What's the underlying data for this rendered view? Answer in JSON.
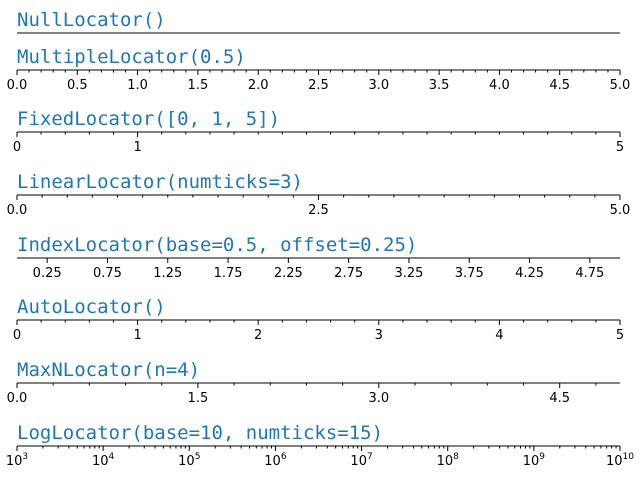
{
  "chart_data": {
    "type": "tick_locator_demo",
    "panels": [
      {
        "title": "NullLocator()",
        "xlim": [
          0,
          5
        ],
        "scale": "linear",
        "major_ticks": [],
        "major_labels": [],
        "minor_ticks": []
      },
      {
        "title": "MultipleLocator(0.5)",
        "xlim": [
          0,
          5
        ],
        "scale": "linear",
        "major_ticks": [
          0,
          0.5,
          1,
          1.5,
          2,
          2.5,
          3,
          3.5,
          4,
          4.5,
          5
        ],
        "major_labels": [
          "0.0",
          "0.5",
          "1.0",
          "1.5",
          "2.0",
          "2.5",
          "3.0",
          "3.5",
          "4.0",
          "4.5",
          "5.0"
        ],
        "minor_ticks": [
          0.1,
          0.2,
          0.3,
          0.4,
          0.6,
          0.7,
          0.8,
          0.9,
          1.1,
          1.2,
          1.3,
          1.4,
          1.6,
          1.7,
          1.8,
          1.9,
          2.1,
          2.2,
          2.3,
          2.4,
          2.6,
          2.7,
          2.8,
          2.9,
          3.1,
          3.2,
          3.3,
          3.4,
          3.6,
          3.7,
          3.8,
          3.9,
          4.1,
          4.2,
          4.3,
          4.4,
          4.6,
          4.7,
          4.8,
          4.9
        ]
      },
      {
        "title": "FixedLocator([0, 1, 5])",
        "xlim": [
          0,
          5
        ],
        "scale": "linear",
        "major_ticks": [
          0,
          1,
          5
        ],
        "major_labels": [
          "0",
          "1",
          "5"
        ],
        "minor_ticks": [
          0.2,
          0.4,
          0.6,
          0.8,
          1.2,
          1.4,
          1.6,
          1.8,
          2,
          2.2,
          2.4,
          2.6,
          2.8,
          3,
          3.2,
          3.4,
          3.6,
          3.8,
          4,
          4.2,
          4.4,
          4.6,
          4.8
        ]
      },
      {
        "title": "LinearLocator(numticks=3)",
        "xlim": [
          0,
          5
        ],
        "scale": "linear",
        "major_ticks": [
          0,
          2.5,
          5
        ],
        "major_labels": [
          "0.0",
          "2.5",
          "5.0"
        ],
        "minor_ticks": [
          0.2083,
          0.4167,
          0.625,
          0.8333,
          1.0417,
          1.25,
          1.4583,
          1.6667,
          1.875,
          2.0833,
          2.2917,
          2.7083,
          2.9167,
          3.125,
          3.3333,
          3.5417,
          3.75,
          3.9583,
          4.1667,
          4.375,
          4.5833,
          4.7917
        ]
      },
      {
        "title": "IndexLocator(base=0.5, offset=0.25)",
        "xlim": [
          0,
          5
        ],
        "scale": "linear",
        "major_ticks": [
          0.25,
          0.75,
          1.25,
          1.75,
          2.25,
          2.75,
          3.25,
          3.75,
          4.25,
          4.75
        ],
        "major_labels": [
          "0.25",
          "0.75",
          "1.25",
          "1.75",
          "2.25",
          "2.75",
          "3.25",
          "3.75",
          "4.25",
          "4.75"
        ],
        "minor_ticks": []
      },
      {
        "title": "AutoLocator()",
        "xlim": [
          0,
          5
        ],
        "scale": "linear",
        "major_ticks": [
          0,
          1,
          2,
          3,
          4,
          5
        ],
        "major_labels": [
          "0",
          "1",
          "2",
          "3",
          "4",
          "5"
        ],
        "minor_ticks": [
          0.2,
          0.4,
          0.6,
          0.8,
          1.2,
          1.4,
          1.6,
          1.8,
          2.2,
          2.4,
          2.6,
          2.8,
          3.2,
          3.4,
          3.6,
          3.8,
          4.2,
          4.4,
          4.6,
          4.8
        ]
      },
      {
        "title": "MaxNLocator(n=4)",
        "xlim": [
          0,
          5
        ],
        "scale": "linear",
        "major_ticks": [
          0,
          1.5,
          3,
          4.5
        ],
        "major_labels": [
          "0.0",
          "1.5",
          "3.0",
          "4.5"
        ],
        "minor_ticks": [
          0.3,
          0.6,
          0.9,
          1.2,
          1.8,
          2.1,
          2.4,
          2.7,
          3.3,
          3.6,
          3.9,
          4.2,
          4.8
        ]
      },
      {
        "title": "LogLocator(base=10, numticks=15)",
        "xlim": [
          1000,
          10000000000
        ],
        "scale": "log",
        "major_ticks": [
          3,
          4,
          5,
          6,
          7,
          8,
          9,
          10
        ],
        "major_labels": [
          {
            "base": "10",
            "exp": "3"
          },
          {
            "base": "10",
            "exp": "4"
          },
          {
            "base": "10",
            "exp": "5"
          },
          {
            "base": "10",
            "exp": "6"
          },
          {
            "base": "10",
            "exp": "7"
          },
          {
            "base": "10",
            "exp": "8"
          },
          {
            "base": "10",
            "exp": "9"
          },
          {
            "base": "10",
            "exp": "10"
          }
        ],
        "minor_ticks": [
          2,
          3,
          4,
          5,
          6,
          7,
          8,
          9
        ]
      }
    ]
  }
}
